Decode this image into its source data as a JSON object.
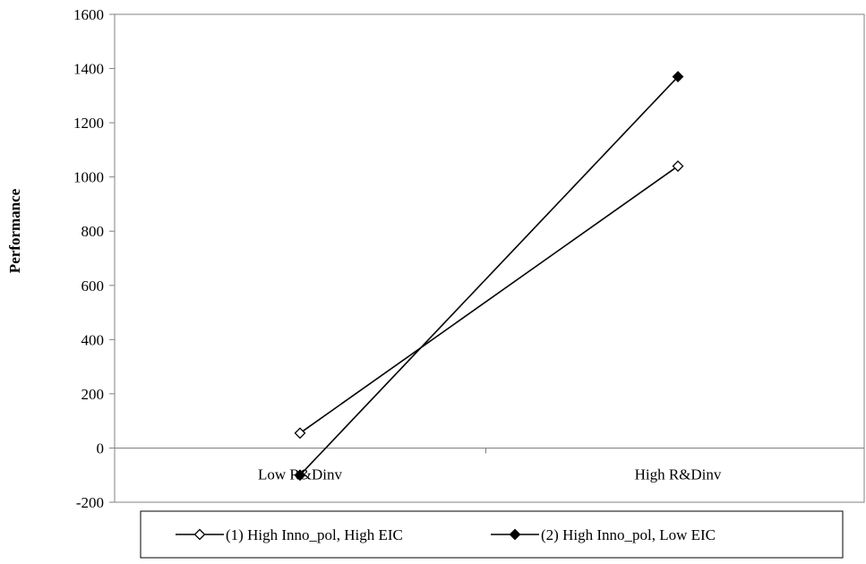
{
  "chart_data": {
    "type": "line",
    "categories": [
      "Low R&Dinv",
      "High R&Dinv"
    ],
    "ylabel": "Performance",
    "xlabel": "",
    "ylim": [
      -200,
      1600
    ],
    "yticks": [
      -200,
      0,
      200,
      400,
      600,
      800,
      1000,
      1200,
      1400,
      1600
    ],
    "grid": false,
    "legend_position": "bottom",
    "series": [
      {
        "name": "(1) High Inno_pol, High EIC",
        "values": [
          55,
          1040
        ],
        "marker": "open-diamond",
        "color": "#000000"
      },
      {
        "name": "(2) High Inno_pol, Low EIC",
        "values": [
          -100,
          1370
        ],
        "marker": "filled-diamond",
        "color": "#000000"
      }
    ]
  }
}
